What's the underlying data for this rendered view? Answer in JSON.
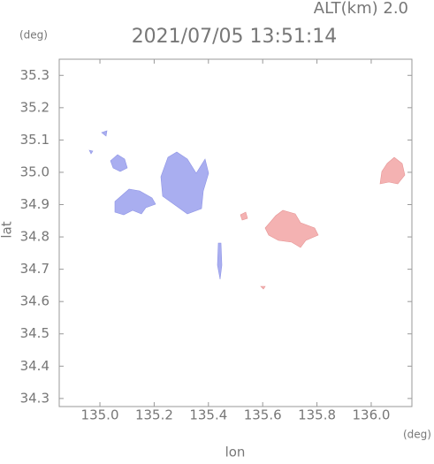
{
  "chart_data": {
    "type": "map",
    "title": "2021/07/05 13:51:14",
    "subtitle": "ALT(km) 2.0",
    "x_label": "lon",
    "y_label": "lat",
    "x_unit": "(deg)",
    "y_unit": "(deg)",
    "xlim": [
      134.85,
      136.15
    ],
    "ylim": [
      34.275,
      35.35
    ],
    "xticks": [
      {
        "value": 135,
        "label": "135.0"
      },
      135.2,
      135.4,
      135.6,
      135.8,
      {
        "value": 136,
        "label": "136.0"
      }
    ],
    "yticks": [
      34.3,
      34.4,
      34.5,
      34.6,
      34.7,
      34.8,
      34.9,
      {
        "value": 35,
        "label": "35.0"
      },
      35.1,
      35.2,
      35.3
    ]
  }
}
